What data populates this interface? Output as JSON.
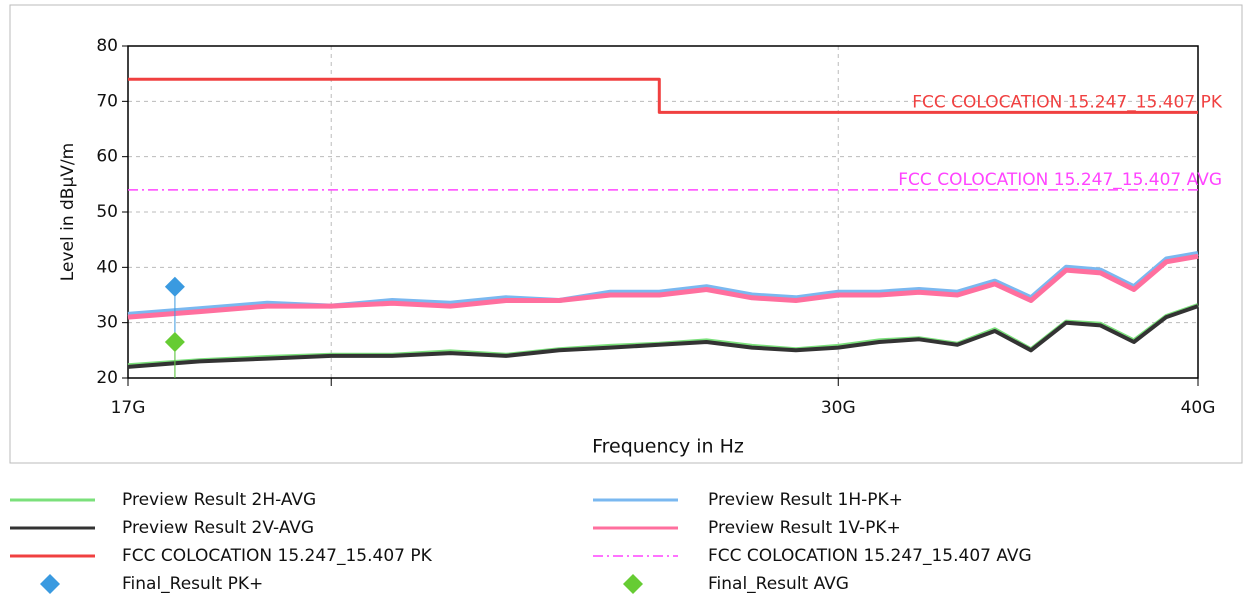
{
  "chart_data": {
    "type": "line",
    "xlabel": "Frequency in Hz",
    "ylabel": "Level in dBµV/m",
    "xscale": "log",
    "xlim": [
      17000000000,
      40000000000
    ],
    "xticks": [
      {
        "value": 17000000000,
        "label": "17G"
      },
      {
        "value": 30000000000,
        "label": "30G"
      },
      {
        "value": 40000000000,
        "label": "40G"
      }
    ],
    "xminor_ticks": [
      20000000000
    ],
    "ylim": [
      20,
      80
    ],
    "yticks": [
      20,
      30,
      40,
      50,
      60,
      70,
      80
    ],
    "grid": true,
    "series": [
      {
        "name": "Preview Result 1H-PK+",
        "color": "#7ab8f0",
        "width": 5,
        "x": [
          17000000000,
          18000000000,
          19000000000,
          20000000000,
          21000000000,
          22000000000,
          23000000000,
          24000000000,
          25000000000,
          26000000000,
          27000000000,
          28000000000,
          29000000000,
          30000000000,
          31000000000,
          32000000000,
          33000000000,
          34000000000,
          35000000000,
          36000000000,
          37000000000,
          38000000000,
          39000000000,
          40000000000
        ],
        "values": [
          31.5,
          32.5,
          33.5,
          33,
          34,
          33.5,
          34.5,
          34,
          35.5,
          35.5,
          36.5,
          35,
          34.5,
          35.5,
          35.5,
          36,
          35.5,
          37.5,
          34.5,
          40,
          39.5,
          36.5,
          41.5,
          42.5
        ]
      },
      {
        "name": "Preview Result 1V-PK+",
        "color": "#ff6f9e",
        "width": 5,
        "x": [
          17000000000,
          18000000000,
          19000000000,
          20000000000,
          21000000000,
          22000000000,
          23000000000,
          24000000000,
          25000000000,
          26000000000,
          27000000000,
          28000000000,
          29000000000,
          30000000000,
          31000000000,
          32000000000,
          33000000000,
          34000000000,
          35000000000,
          36000000000,
          37000000000,
          38000000000,
          39000000000,
          40000000000
        ],
        "values": [
          31,
          32,
          33,
          33,
          33.5,
          33,
          34,
          34,
          35,
          35,
          36,
          34.5,
          34,
          35,
          35,
          35.5,
          35,
          37,
          34,
          39.5,
          39,
          36,
          41,
          42
        ]
      },
      {
        "name": "Preview Result 2H-AVG",
        "color": "#7be07b",
        "width": 4,
        "x": [
          17000000000,
          18000000000,
          19000000000,
          20000000000,
          21000000000,
          22000000000,
          23000000000,
          24000000000,
          25000000000,
          26000000000,
          27000000000,
          28000000000,
          29000000000,
          30000000000,
          31000000000,
          32000000000,
          33000000000,
          34000000000,
          35000000000,
          36000000000,
          37000000000,
          38000000000,
          39000000000,
          40000000000
        ],
        "values": [
          22.3,
          23.2,
          23.8,
          24.2,
          24.2,
          24.8,
          24.2,
          25.2,
          25.8,
          26.2,
          26.8,
          25.8,
          25.2,
          25.8,
          26.8,
          27.2,
          26.2,
          28.8,
          25.2,
          30.2,
          29.8,
          26.8,
          31.2,
          33.2
        ]
      },
      {
        "name": "Preview Result 2V-AVG",
        "color": "#333333",
        "width": 4,
        "x": [
          17000000000,
          18000000000,
          19000000000,
          20000000000,
          21000000000,
          22000000000,
          23000000000,
          24000000000,
          25000000000,
          26000000000,
          27000000000,
          28000000000,
          29000000000,
          30000000000,
          31000000000,
          32000000000,
          33000000000,
          34000000000,
          35000000000,
          36000000000,
          37000000000,
          38000000000,
          39000000000,
          40000000000
        ],
        "values": [
          22,
          23,
          23.5,
          24,
          24,
          24.5,
          24,
          25,
          25.5,
          26,
          26.5,
          25.5,
          25,
          25.5,
          26.5,
          27,
          26,
          28.5,
          25,
          30,
          29.5,
          26.5,
          31,
          33
        ]
      },
      {
        "name": "FCC COLOCATION 15.247_15.407 PK",
        "color": "#f04040",
        "width": 3,
        "x": [
          17000000000,
          26000000000,
          26000000000,
          40000000000
        ],
        "values": [
          74,
          74,
          68,
          68
        ]
      },
      {
        "name": "FCC COLOCATION 15.247_15.407 AVG",
        "color": "#ff44ff",
        "width": 1.5,
        "dash": "dashdot",
        "x": [
          17000000000,
          40000000000
        ],
        "values": [
          54,
          54
        ]
      },
      {
        "name": "Final_Result PK+",
        "color": "#3a9ae0",
        "marker": "diamond",
        "x": [
          17650000000
        ],
        "values": [
          36.5
        ]
      },
      {
        "name": "Final_Result AVG",
        "color": "#66cc33",
        "marker": "diamond",
        "x": [
          17650000000
        ],
        "values": [
          26.5
        ]
      }
    ]
  }
}
